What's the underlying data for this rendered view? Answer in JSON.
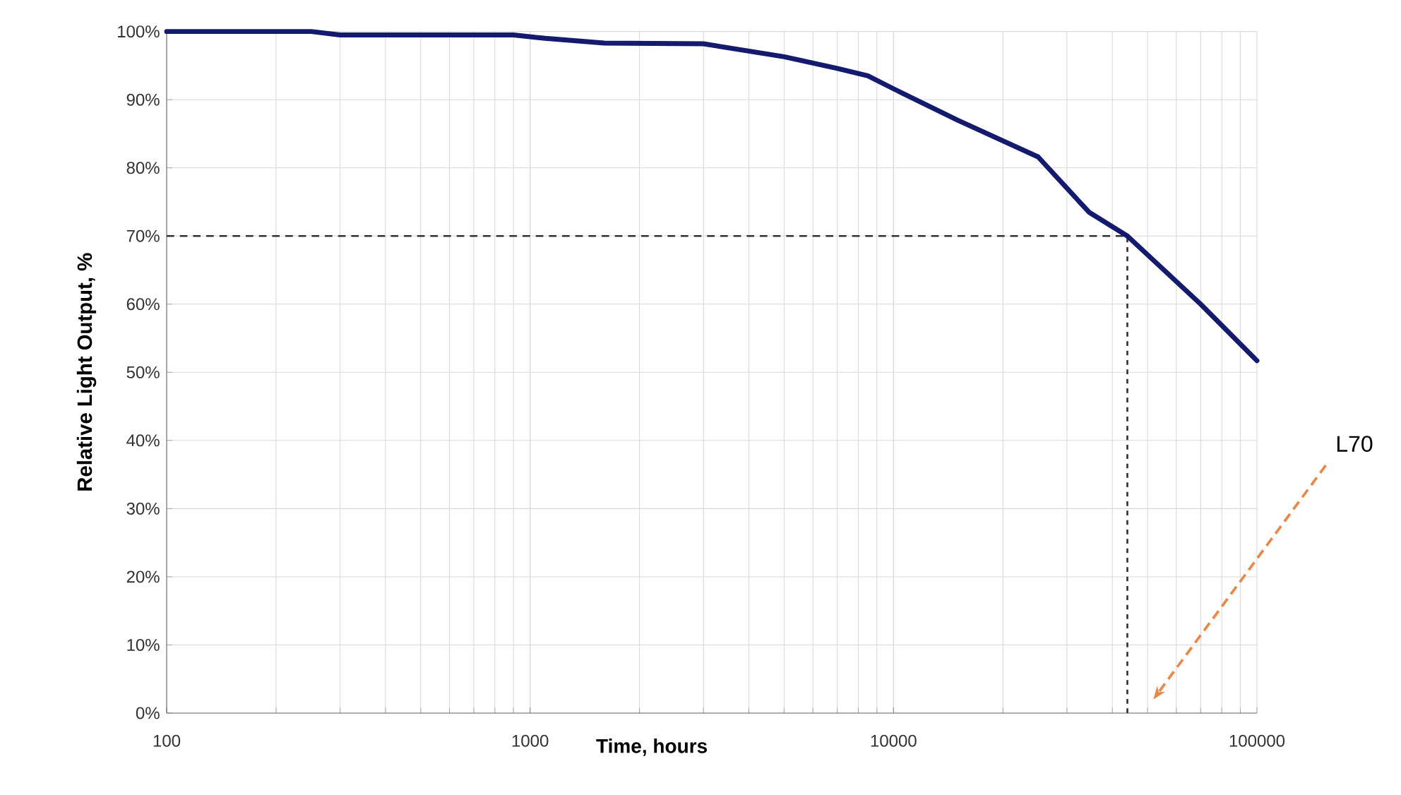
{
  "chart_data": {
    "type": "line",
    "xlabel": "Time, hours",
    "ylabel": "Relative Light Output, %",
    "log": "x",
    "grid": true,
    "marker": "none",
    "line_style": "solid",
    "xlim": [
      100,
      100000
    ],
    "xticks": [
      100,
      1000,
      10000,
      100000
    ],
    "ylim": [
      0,
      100
    ],
    "yticks": [
      {
        "value": 0,
        "label": "0%"
      },
      {
        "value": 10,
        "label": "10%"
      },
      {
        "value": 20,
        "label": "20%"
      },
      {
        "value": 30,
        "label": "30%"
      },
      {
        "value": 40,
        "label": "40%"
      },
      {
        "value": 50,
        "label": "50%"
      },
      {
        "value": 60,
        "label": "60%"
      },
      {
        "value": 70,
        "label": "70%"
      },
      {
        "value": 80,
        "label": "80%"
      },
      {
        "value": 90,
        "label": "90%"
      },
      {
        "value": 100,
        "label": "100%"
      }
    ],
    "x": [
      100,
      250,
      300,
      900,
      1100,
      1600,
      3000,
      5000,
      7000,
      8500,
      10000,
      15000,
      25000,
      34500,
      44000,
      70000,
      100000
    ],
    "series": [
      {
        "color": "#141a6e",
        "values": [
          100,
          100,
          99.5,
          99.5,
          99,
          98.3,
          98.2,
          96.3,
          94.6,
          93.5,
          91.6,
          87,
          81.6,
          73.5,
          70,
          60,
          51.7
        ]
      }
    ],
    "ref_lines": [
      {
        "axis": "y",
        "value": 70,
        "color": "#333333",
        "line_style": "dashed"
      },
      {
        "axis": "x",
        "value": 44000,
        "color": "#333333",
        "line_style": "dotted"
      }
    ],
    "annotations": [
      "L70"
    ]
  }
}
